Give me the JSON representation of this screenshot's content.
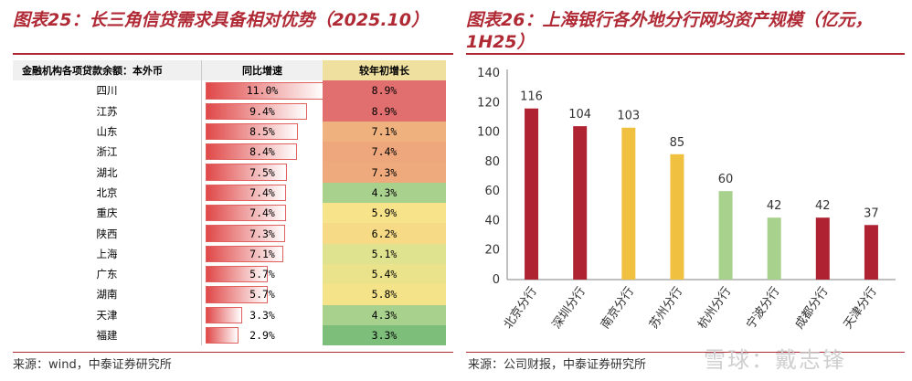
{
  "left_title": "图表25：长三角信贷需求具备相对优势（2025.10）",
  "right_title": "图表26：上海银行各外地分行网均资产规模（亿元，1H25）",
  "left_source": "来源：wind，中泰证券研究所",
  "right_source": "来源：公司财报，中泰证券研究所",
  "watermark": "雪球：戴志锋",
  "table": {
    "headers": [
      "金融机构各项贷款余额：本外币",
      "同比增速",
      "较年初增长"
    ],
    "rows": [
      {
        "name": "四川",
        "yoy": "11.0%",
        "ytd": "8.9%",
        "yoy_value": 11.0,
        "color": "#e26f6f"
      },
      {
        "name": "江苏",
        "yoy": "9.4%",
        "ytd": "8.9%",
        "yoy_value": 9.4,
        "color": "#e26f6f"
      },
      {
        "name": "山东",
        "yoy": "8.5%",
        "ytd": "7.1%",
        "yoy_value": 8.5,
        "color": "#efb27f"
      },
      {
        "name": "浙江",
        "yoy": "8.4%",
        "ytd": "7.4%",
        "yoy_value": 8.4,
        "color": "#eea77c"
      },
      {
        "name": "湖北",
        "yoy": "7.5%",
        "ytd": "7.3%",
        "yoy_value": 7.5,
        "color": "#eeaa7d"
      },
      {
        "name": "北京",
        "yoy": "7.4%",
        "ytd": "4.3%",
        "yoy_value": 7.4,
        "color": "#a9d18e"
      },
      {
        "name": "重庆",
        "yoy": "7.4%",
        "ytd": "5.9%",
        "yoy_value": 7.4,
        "color": "#f7e48a"
      },
      {
        "name": "陕西",
        "yoy": "7.3%",
        "ytd": "6.2%",
        "yoy_value": 7.3,
        "color": "#f6da86"
      },
      {
        "name": "上海",
        "yoy": "7.1%",
        "ytd": "5.1%",
        "yoy_value": 7.1,
        "color": "#dfe38f"
      },
      {
        "name": "广东",
        "yoy": "5.7%",
        "ytd": "5.4%",
        "yoy_value": 5.7,
        "color": "#ebe38b"
      },
      {
        "name": "湖南",
        "yoy": "5.7%",
        "ytd": "5.8%",
        "yoy_value": 5.7,
        "color": "#f5e38a"
      },
      {
        "name": "天津",
        "yoy": "3.3%",
        "ytd": "4.3%",
        "yoy_value": 3.3,
        "color": "#a9d18e"
      },
      {
        "name": "福建",
        "yoy": "2.9%",
        "ytd": "3.3%",
        "yoy_value": 2.9,
        "color": "#7dbf7a"
      }
    ]
  },
  "chart_data": {
    "type": "bar",
    "categories": [
      "北京分行",
      "深圳分行",
      "南京分行",
      "苏州分行",
      "杭州分行",
      "宁波分行",
      "成都分行",
      "天津分行"
    ],
    "values": [
      116,
      104,
      103,
      85,
      60,
      42,
      42,
      37
    ],
    "colors": [
      "#ae2232",
      "#ae2232",
      "#f0c040",
      "#f0c040",
      "#a9d18e",
      "#a9d18e",
      "#ae2232",
      "#ae2232"
    ],
    "ylim": [
      0,
      140
    ],
    "yticks": [
      0,
      20,
      40,
      60,
      80,
      100,
      120,
      140
    ],
    "title": "",
    "xlabel": "",
    "ylabel": ""
  }
}
